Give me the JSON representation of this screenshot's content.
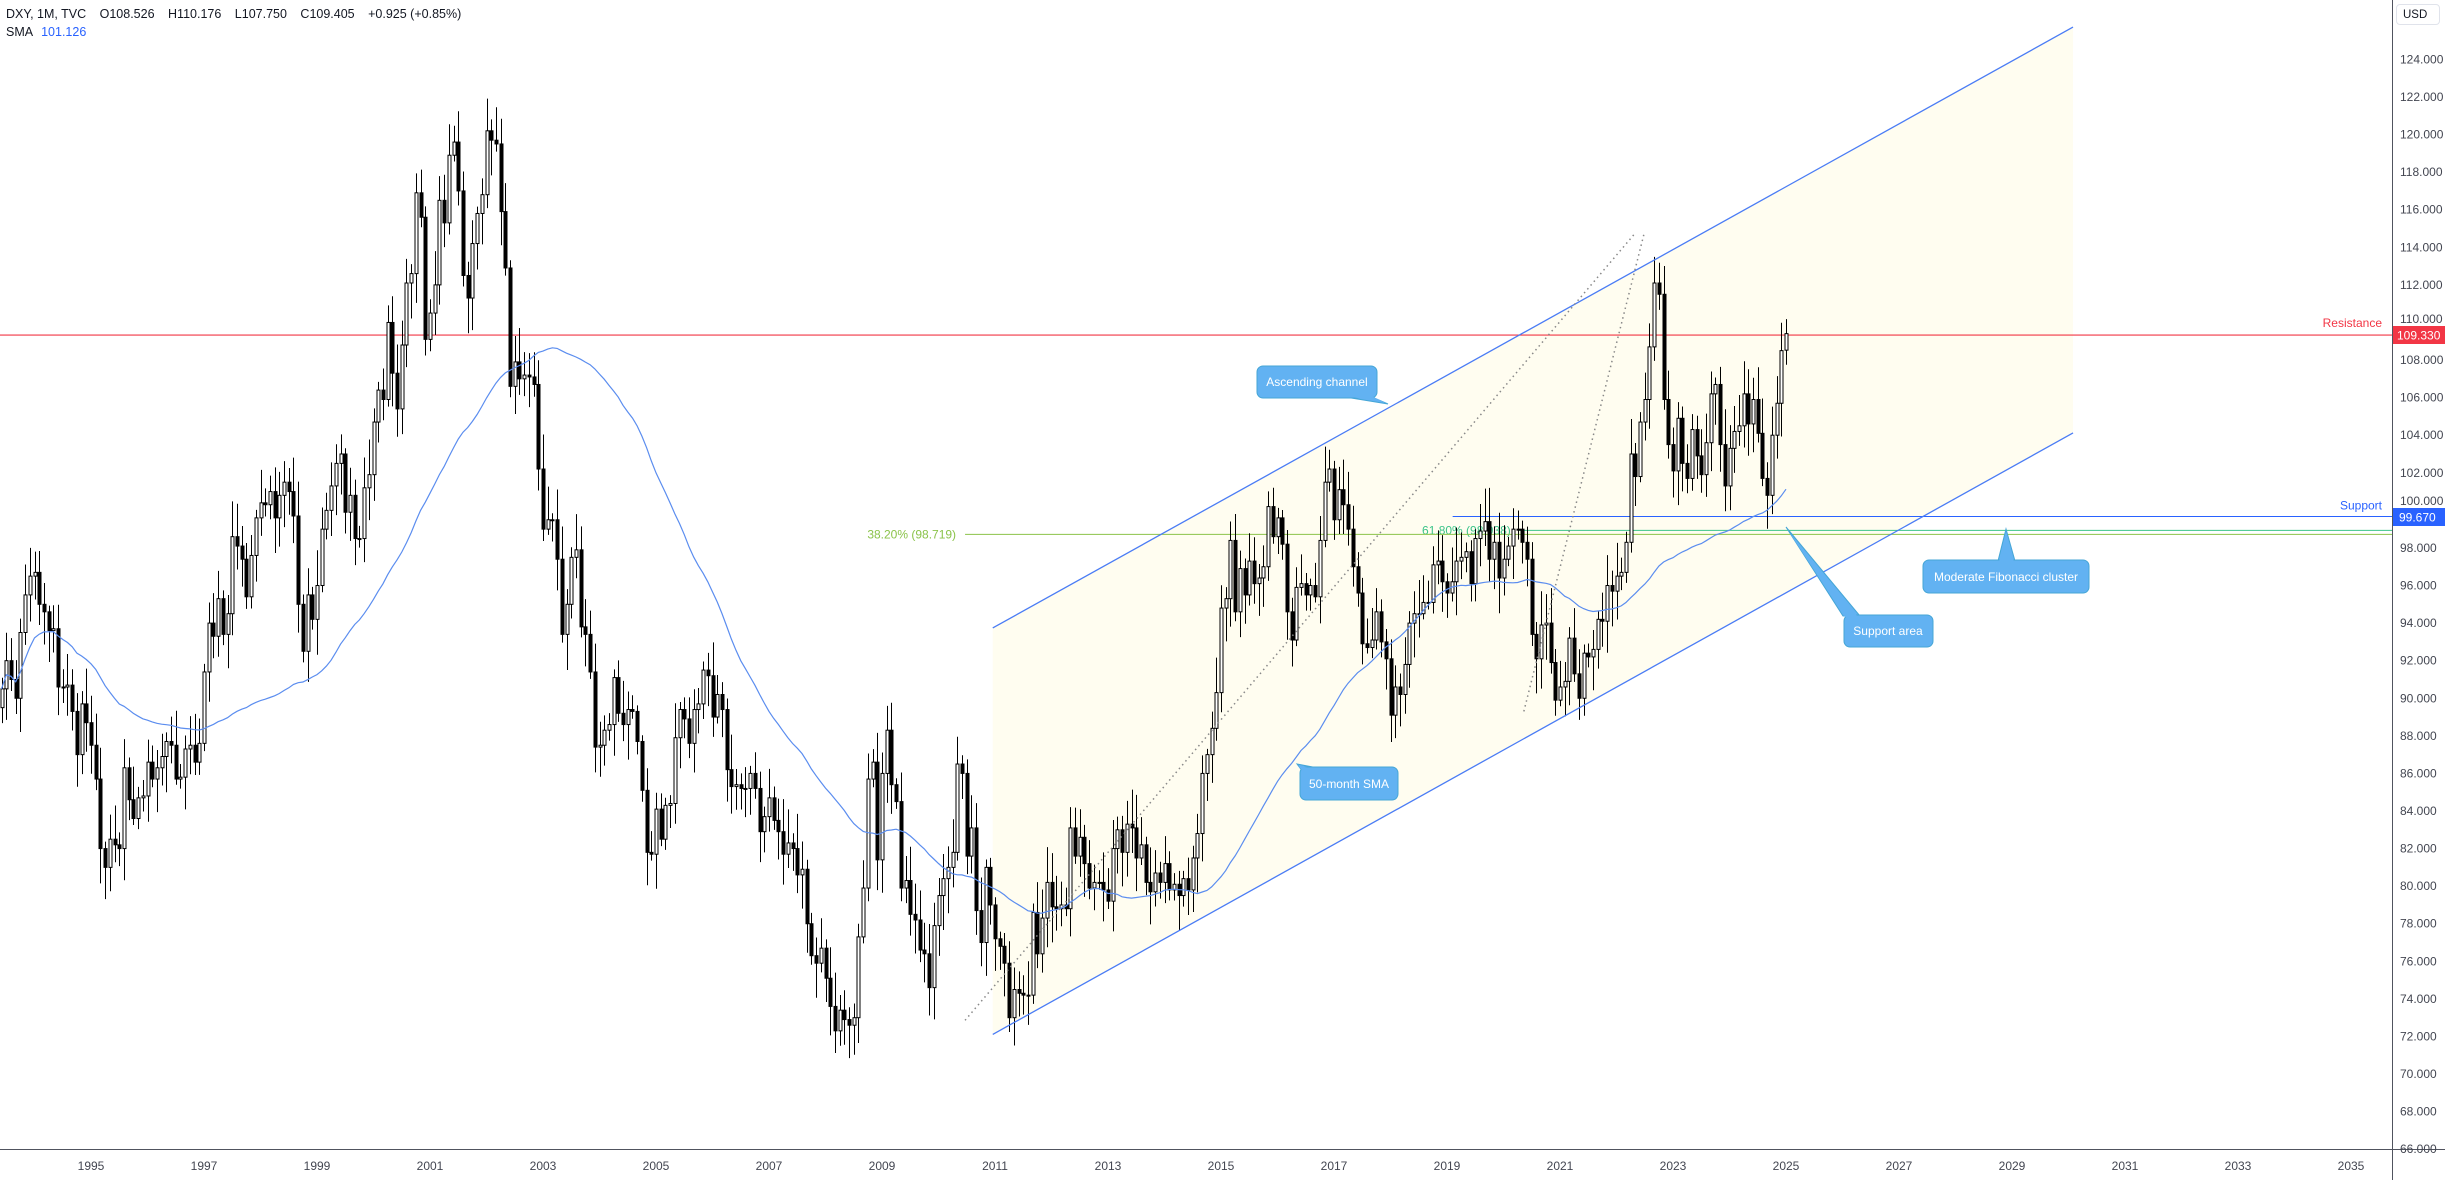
{
  "legend": {
    "symbol": "DXY, 1M, TVC",
    "open_label": "O",
    "open": "108.526",
    "high_label": "H",
    "high": "110.176",
    "low_label": "L",
    "low": "107.750",
    "close_label": "C",
    "close": "109.405",
    "change": "+0.925 (+0.85%)",
    "sma_label": "SMA",
    "sma_value": "101.126"
  },
  "price_axis": {
    "currency": "USD",
    "ticks": [
      "124.000",
      "122.000",
      "120.000",
      "118.000",
      "116.000",
      "114.000",
      "112.000",
      "110.000",
      "108.000",
      "106.000",
      "104.000",
      "102.000",
      "100.000",
      "98.000",
      "96.000",
      "94.000",
      "92.000",
      "90.000",
      "88.000",
      "86.000",
      "84.000",
      "82.000",
      "80.000",
      "78.000",
      "76.000",
      "74.000",
      "72.000",
      "70.000",
      "68.000",
      "66.000"
    ],
    "resistance_tag": "109.330",
    "support_tag": "99.670"
  },
  "time_axis": {
    "ticks": [
      "1995",
      "1997",
      "1999",
      "2001",
      "2003",
      "2005",
      "2007",
      "2009",
      "2011",
      "2013",
      "2015",
      "2017",
      "2019",
      "2021",
      "2023",
      "2025",
      "2027",
      "2029",
      "2031",
      "2033",
      "2035"
    ]
  },
  "levels": {
    "resistance": {
      "label": "Resistance",
      "price": 109.33,
      "color": "#f23645"
    },
    "support": {
      "label": "Support",
      "price": 99.67,
      "color": "#2962ff",
      "from": 2019.1
    },
    "fib_382": {
      "label": "38.20% (98.719)",
      "price": 98.719,
      "color": "#8bc34a",
      "from": 2010.47
    },
    "fib_618": {
      "label": "61.80% (98.938)",
      "price": 98.938,
      "color": "#3cc48a",
      "from": 2020.27
    }
  },
  "callouts": {
    "ascending_channel": "Ascending channel",
    "sma": "50-month SMA",
    "support_area": "Support area",
    "fib_cluster": "Moderate Fibonacci cluster"
  },
  "colors": {
    "channel": "#4a7cf5",
    "channel_fill": "#fffdf0",
    "sma": "#5b8def",
    "callout_fill": "#62b2f2",
    "callout_border": "#45a6d6",
    "candle": "#000000"
  },
  "chart_data": {
    "type": "candlestick",
    "symbol": "DXY",
    "interval": "1M",
    "start": "1993-06",
    "first_open": 89.5,
    "monthly_close": [
      90.5,
      92.0,
      91.0,
      90.0,
      93.5,
      95.5,
      96.5,
      96.7,
      95.0,
      94.6,
      93.6,
      93.7,
      90.6,
      90.6,
      90.7,
      89.3,
      87.0,
      89.7,
      88.7,
      87.5,
      85.7,
      82.0,
      81.0,
      82.5,
      82.2,
      82.0,
      86.3,
      84.6,
      83.6,
      84.7,
      84.8,
      86.6,
      85.7,
      86.3,
      86.9,
      87.7,
      87.5,
      85.7,
      85.8,
      87.3,
      87.5,
      86.6,
      87.6,
      91.4,
      94.0,
      93.3,
      95.3,
      93.4,
      94.5,
      98.6,
      98.1,
      97.4,
      95.4,
      97.6,
      99.6,
      100.4,
      100.3,
      101.0,
      99.6,
      100.8,
      101.5,
      101.0,
      99.7,
      95.0,
      92.5,
      95.5,
      94.2,
      96.0,
      99.0,
      100.0,
      101.3,
      102.5,
      103.0,
      99.9,
      100.8,
      98.5,
      98.5,
      101.2,
      101.9,
      104.7,
      106.4,
      105.9,
      110.0,
      107.3,
      105.4,
      108.8,
      112.1,
      112.6,
      116.9,
      115.6,
      109.1,
      110.5,
      112.0,
      116.5,
      115.3,
      118.9,
      119.6,
      117.0,
      112.5,
      111.3,
      114.2,
      115.8,
      116.8,
      120.2,
      119.7,
      119.5,
      115.9,
      112.9,
      106.6,
      107.9,
      107.0,
      107.2,
      107.1,
      106.7,
      102.2,
      99.0,
      99.5,
      99.5,
      97.4,
      93.4,
      95.0,
      97.5,
      97.9,
      93.8,
      93.4,
      91.4,
      87.4,
      87.5,
      88.3,
      88.6,
      91.1,
      89.2,
      88.6,
      89.4,
      89.3,
      87.7,
      85.1,
      81.8,
      81.7,
      84.1,
      82.5,
      84.3,
      84.4,
      87.9,
      89.4,
      88.9,
      87.6,
      89.4,
      89.7,
      91.5,
      91.2,
      89.0,
      90.2,
      89.4,
      86.2,
      85.3,
      85.4,
      85.2,
      85.2,
      86.0,
      85.2,
      82.9,
      83.7,
      84.7,
      83.5,
      82.9,
      81.7,
      82.3,
      82.0,
      80.6,
      80.9,
      78.0,
      76.3,
      75.9,
      76.7,
      75.1,
      73.6,
      72.3,
      73.4,
      72.9,
      72.6,
      73.0,
      77.3,
      79.9,
      85.7,
      86.6,
      81.4,
      86.0,
      88.3,
      85.4,
      84.5,
      79.9,
      80.3,
      78.5,
      78.2,
      76.6,
      76.4,
      74.6,
      77.9,
      79.5,
      80.4,
      81.0,
      81.8,
      86.5,
      86.0,
      81.6,
      83.1,
      78.7,
      77.0,
      81.0,
      79.0,
      77.2,
      76.8,
      75.9,
      73.0,
      74.5,
      74.3,
      74.2,
      74.2,
      78.6,
      76.4,
      78.3,
      80.2,
      78.9,
      78.8,
      79.0,
      78.8,
      83.1,
      81.6,
      82.6,
      81.2,
      79.9,
      80.2,
      80.2,
      79.8,
      79.2,
      82.0,
      83.0,
      81.8,
      83.3,
      83.1,
      81.5,
      82.2,
      80.2,
      79.7,
      80.7,
      80.2,
      81.2,
      79.8,
      80.1,
      79.5,
      80.4,
      79.8,
      81.5,
      82.8,
      86.0,
      87.0,
      88.4,
      90.3,
      94.8,
      95.3,
      98.4,
      94.6,
      96.9,
      95.5,
      97.3,
      96.1,
      96.4,
      97.0,
      100.2,
      98.6,
      99.6,
      98.2,
      94.6,
      93.1,
      95.9,
      96.1,
      95.5,
      96.0,
      95.4,
      98.4,
      101.5,
      102.2,
      99.5,
      101.1,
      100.3,
      99.0,
      97.0,
      95.6,
      92.9,
      92.7,
      93.1,
      94.6,
      93.0,
      92.1,
      89.1,
      90.6,
      90.2,
      91.8,
      94.0,
      94.5,
      94.5,
      95.1,
      95.1,
      97.1,
      97.3,
      96.2,
      95.6,
      96.2,
      97.3,
      97.5,
      97.8,
      96.1,
      98.5,
      98.9,
      99.4,
      97.4,
      98.3,
      96.4,
      97.4,
      98.1,
      99.0,
      99.0,
      98.3,
      97.4,
      93.4,
      92.1,
      93.9,
      94.0,
      91.9,
      89.9,
      90.6,
      90.9,
      93.2,
      91.3,
      90.0,
      92.4,
      92.2,
      92.6,
      94.2,
      94.1,
      96.0,
      95.7,
      96.5,
      96.7,
      98.3,
      103.0,
      101.8,
      104.7,
      105.9,
      108.7,
      112.1,
      111.5,
      105.9,
      103.5,
      102.1,
      104.9,
      102.5,
      101.7,
      104.3,
      102.9,
      101.9,
      103.6,
      106.2,
      106.7,
      103.5,
      101.3,
      103.3,
      104.2,
      104.5,
      106.2,
      104.6,
      105.9,
      104.1,
      101.7,
      100.8,
      104.0,
      105.7,
      108.5
    ],
    "last_candle": {
      "date": "2025-01",
      "open": 108.526,
      "high": 110.176,
      "low": 107.75,
      "close": 109.405
    },
    "sma_period": 50,
    "y_range": [
      65,
      125
    ],
    "x_range": [
      1993.3,
      2036.0
    ],
    "channel": {
      "upper": [
        [
          2010.96,
          93.74
        ],
        [
          2030.08,
          125.72
        ]
      ],
      "lower": [
        [
          2010.96,
          72.11
        ],
        [
          2030.08,
          104.12
        ]
      ]
    },
    "dotted_lines": [
      [
        [
          2010.47,
          72.86
        ],
        [
          2022.33,
          114.75
        ]
      ],
      [
        [
          2020.36,
          89.3
        ],
        [
          2022.49,
          114.75
        ]
      ]
    ],
    "grid": false,
    "scale": "linear"
  }
}
